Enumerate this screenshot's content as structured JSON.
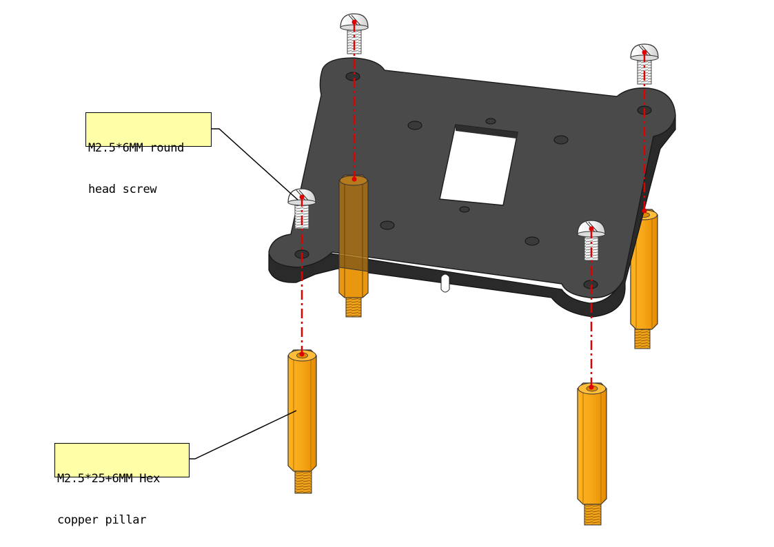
{
  "labels": {
    "screw": {
      "line1": "M2.5*6MM round",
      "line2": "head screw"
    },
    "pillar": {
      "line1": "M2.5*25+6MM Hex",
      "line2": "copper pillar"
    }
  },
  "colors": {
    "plate": "#4a4a4a",
    "plate_edge": "#2b2b2b",
    "pillar": "#f7a81a",
    "pillar_dark": "#e08a00",
    "screw": "#f2f2f2",
    "axis_line": "#e00000",
    "label_bg": "#ffffa8"
  },
  "icons": [
    "mounting-plate-icon",
    "round-head-screw-icon",
    "hex-copper-pillar-icon"
  ]
}
